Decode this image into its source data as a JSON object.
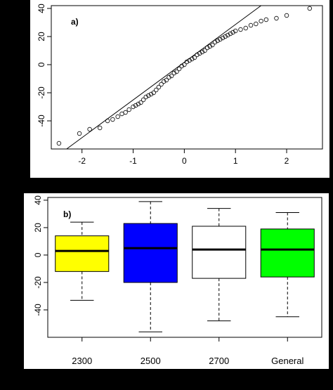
{
  "chart_data": [
    {
      "type": "scatter",
      "panel_label": "a)",
      "xlim": [
        -2.6,
        2.7
      ],
      "ylim": [
        -60,
        42
      ],
      "x_ticks": [
        -2,
        -1,
        0,
        1,
        2
      ],
      "y_ticks": [
        -40,
        -20,
        0,
        20,
        40
      ],
      "reference_line": {
        "x": [
          -2.3,
          1.5
        ],
        "y": [
          -60,
          42
        ]
      },
      "points": [
        [
          -2.45,
          -56
        ],
        [
          -2.05,
          -49
        ],
        [
          -1.85,
          -46
        ],
        [
          -1.65,
          -45
        ],
        [
          -1.5,
          -40
        ],
        [
          -1.4,
          -39
        ],
        [
          -1.3,
          -37
        ],
        [
          -1.22,
          -35
        ],
        [
          -1.15,
          -34
        ],
        [
          -1.08,
          -32
        ],
        [
          -1.0,
          -30
        ],
        [
          -0.95,
          -29
        ],
        [
          -0.9,
          -28
        ],
        [
          -0.85,
          -27
        ],
        [
          -0.8,
          -25
        ],
        [
          -0.75,
          -23
        ],
        [
          -0.7,
          -22
        ],
        [
          -0.65,
          -21
        ],
        [
          -0.6,
          -20
        ],
        [
          -0.55,
          -18
        ],
        [
          -0.5,
          -16
        ],
        [
          -0.45,
          -14
        ],
        [
          -0.4,
          -12
        ],
        [
          -0.35,
          -11
        ],
        [
          -0.3,
          -9
        ],
        [
          -0.25,
          -8
        ],
        [
          -0.2,
          -6
        ],
        [
          -0.15,
          -5
        ],
        [
          -0.1,
          -3
        ],
        [
          -0.05,
          -1
        ],
        [
          0.0,
          0
        ],
        [
          0.05,
          2
        ],
        [
          0.1,
          3
        ],
        [
          0.15,
          4
        ],
        [
          0.2,
          5
        ],
        [
          0.25,
          7
        ],
        [
          0.3,
          8
        ],
        [
          0.35,
          9
        ],
        [
          0.4,
          10
        ],
        [
          0.45,
          12
        ],
        [
          0.5,
          13
        ],
        [
          0.55,
          14
        ],
        [
          0.6,
          16
        ],
        [
          0.65,
          17
        ],
        [
          0.7,
          18
        ],
        [
          0.75,
          19
        ],
        [
          0.8,
          20
        ],
        [
          0.85,
          21
        ],
        [
          0.9,
          22
        ],
        [
          0.95,
          23
        ],
        [
          1.0,
          24
        ],
        [
          1.1,
          25
        ],
        [
          1.2,
          26
        ],
        [
          1.3,
          28
        ],
        [
          1.4,
          29
        ],
        [
          1.5,
          31
        ],
        [
          1.6,
          32
        ],
        [
          1.8,
          33
        ],
        [
          2.0,
          35
        ],
        [
          2.45,
          40
        ]
      ]
    },
    {
      "type": "box",
      "panel_label": "b)",
      "ylim": [
        -60,
        42
      ],
      "y_ticks": [
        -40,
        -20,
        0,
        20,
        40
      ],
      "categories": [
        "2300",
        "2500",
        "2700",
        "General"
      ],
      "boxes": [
        {
          "category": "2300",
          "min": -33,
          "q1": -12,
          "median": 3,
          "q3": 14,
          "max": 24,
          "color": "#ffff00"
        },
        {
          "category": "2500",
          "min": -56,
          "q1": -20,
          "median": 5,
          "q3": 23,
          "max": 39,
          "color": "#0000ff"
        },
        {
          "category": "2700",
          "min": -48,
          "q1": -17,
          "median": 4,
          "q3": 21,
          "max": 34,
          "color": "#ffffff"
        },
        {
          "category": "General",
          "min": -45,
          "q1": -16,
          "median": 4,
          "q3": 19,
          "max": 31,
          "color": "#00ff00"
        }
      ]
    }
  ]
}
